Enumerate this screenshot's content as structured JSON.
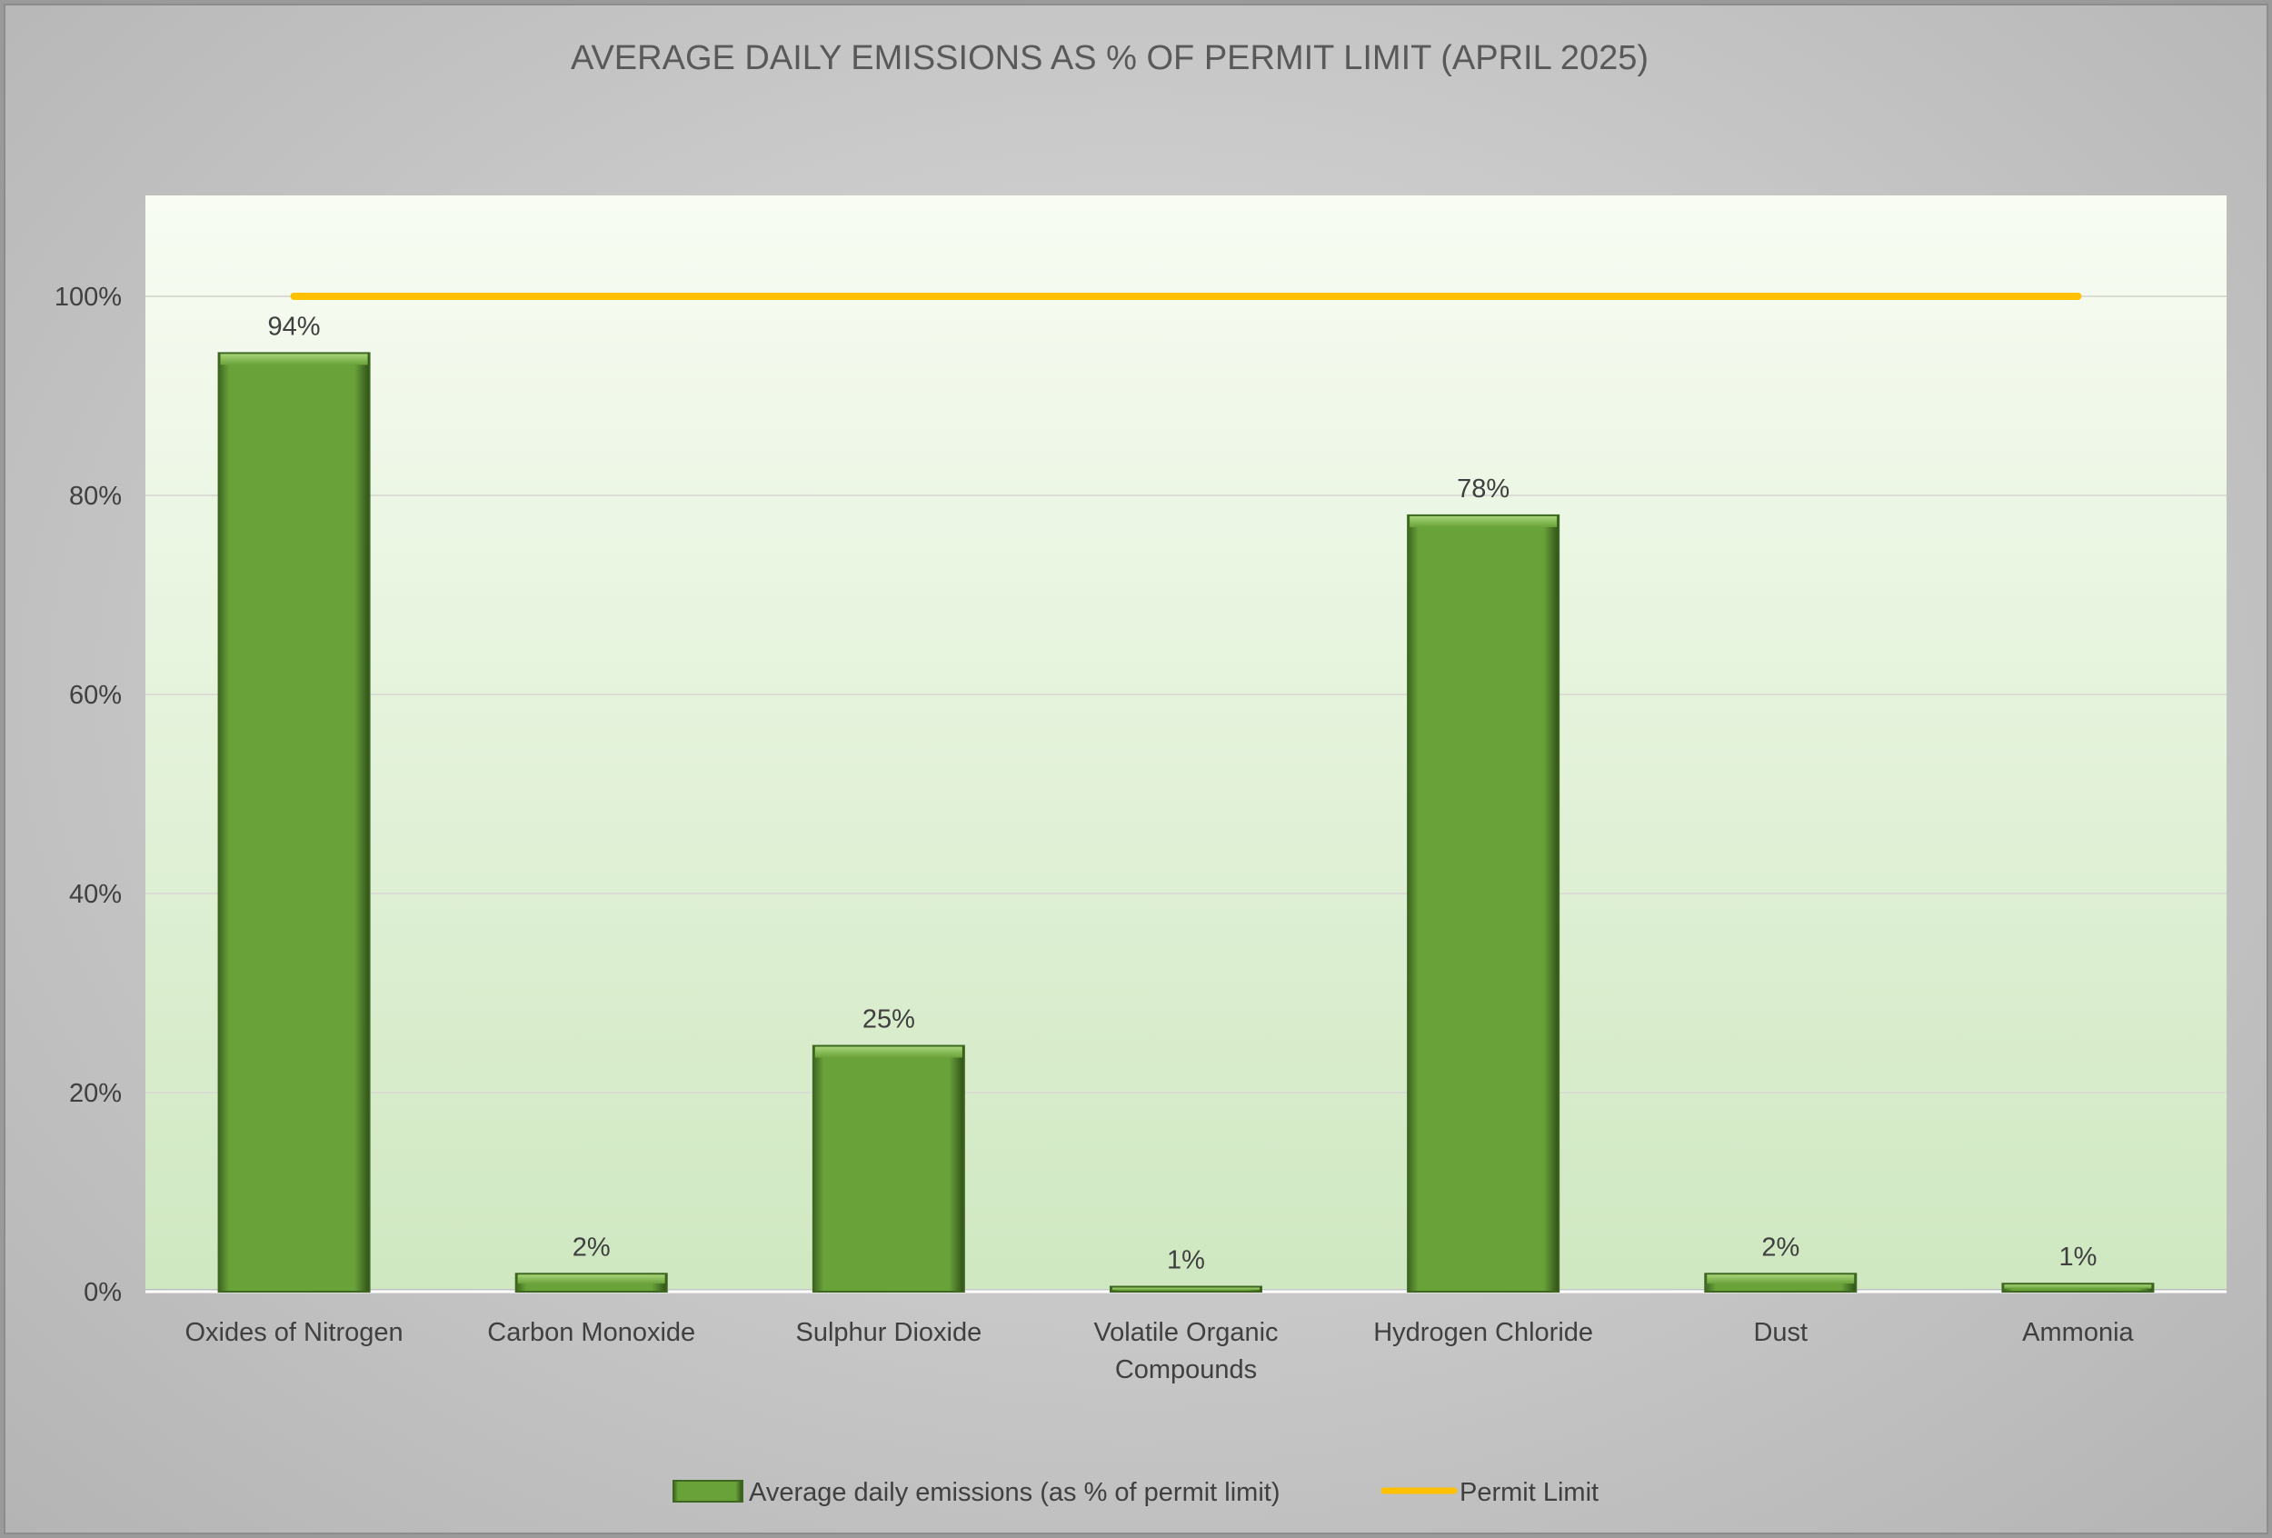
{
  "chart_data": {
    "type": "bar",
    "title": "AVERAGE DAILY EMISSIONS AS % OF PERMIT LIMIT (APRIL 2025)",
    "categories": [
      [
        "Oxides of Nitrogen"
      ],
      [
        "Carbon Monoxide"
      ],
      [
        "Sulphur Dioxide"
      ],
      [
        "Volatile Organic",
        "Compounds"
      ],
      [
        "Hydrogen Chloride"
      ],
      [
        "Dust"
      ],
      [
        "Ammonia"
      ]
    ],
    "series": [
      {
        "name": "Average daily emissions (as % of permit limit)",
        "type": "bar",
        "values": [
          94.3,
          1.8,
          24.7,
          0.5,
          78,
          1.8,
          0.8
        ],
        "data_labels": [
          "94%",
          "2%",
          "25%",
          "1%",
          "78%",
          "2%",
          "1%"
        ],
        "color": "#6aa23a"
      },
      {
        "name": "Permit Limit",
        "type": "line",
        "values": [
          100,
          100,
          100,
          100,
          100,
          100,
          100
        ],
        "color": "#ffc000"
      }
    ],
    "y_ticks": [
      0,
      20,
      40,
      60,
      80,
      100
    ],
    "y_tick_labels": [
      "0%",
      "20%",
      "40%",
      "60%",
      "80%",
      "100%"
    ],
    "ylim": [
      0,
      110
    ],
    "xlabel": "",
    "ylabel": "",
    "grid": true,
    "legend_position": "bottom"
  },
  "colors": {
    "bar_fill": "#6aa23a",
    "bar_dark": "#3d6620",
    "bar_light": "#93c55e",
    "limit_line": "#ffc000",
    "plot_top": "#f8fcf3",
    "plot_bottom": "#cfe8c1",
    "text": "#404040",
    "title": "#595959"
  }
}
